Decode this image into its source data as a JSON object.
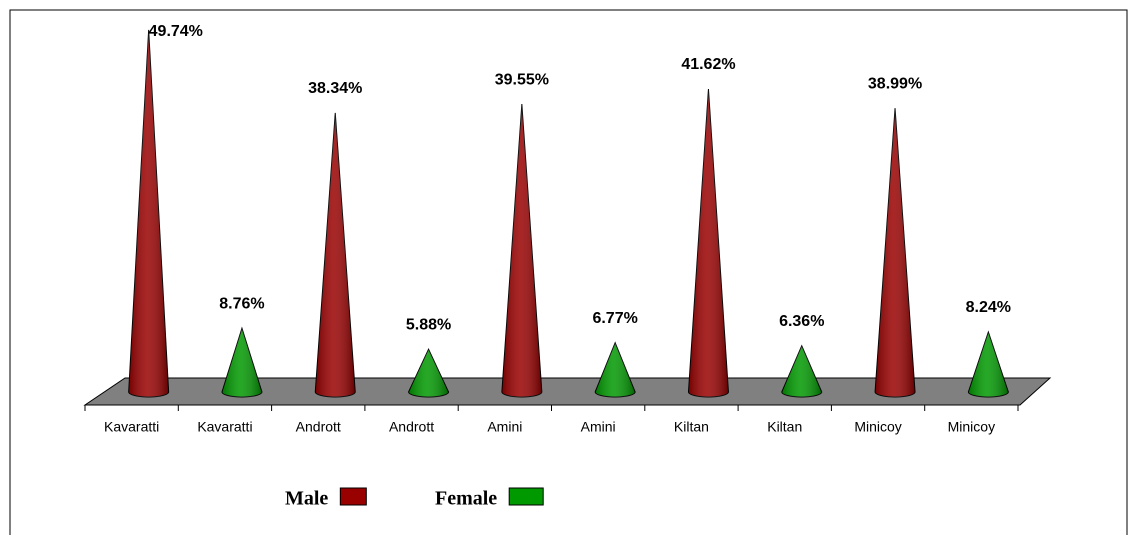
{
  "chart_data": {
    "type": "cone",
    "categories": [
      "Kavaratti",
      "Kavaratti",
      "Andrott",
      "Andrott",
      "Amini",
      "Amini",
      "Kiltan",
      "Kiltan",
      "Minicoy",
      "Minicoy"
    ],
    "series": [
      {
        "name": "Male",
        "color": "#990000",
        "values": [
          49.74,
          null,
          38.34,
          null,
          39.55,
          null,
          41.62,
          null,
          38.99,
          null
        ],
        "value_labels": [
          "49.74%",
          null,
          "38.34%",
          null,
          "39.55%",
          null,
          "41.62%",
          null,
          "38.99%",
          null
        ]
      },
      {
        "name": "Female",
        "color": "#009900",
        "values": [
          null,
          8.76,
          null,
          5.88,
          null,
          6.77,
          null,
          6.36,
          null,
          8.24
        ],
        "value_labels": [
          null,
          "8.76%",
          null,
          "5.88%",
          null,
          "6.77%",
          null,
          "6.36%",
          null,
          "8.24%"
        ]
      }
    ]
  }
}
